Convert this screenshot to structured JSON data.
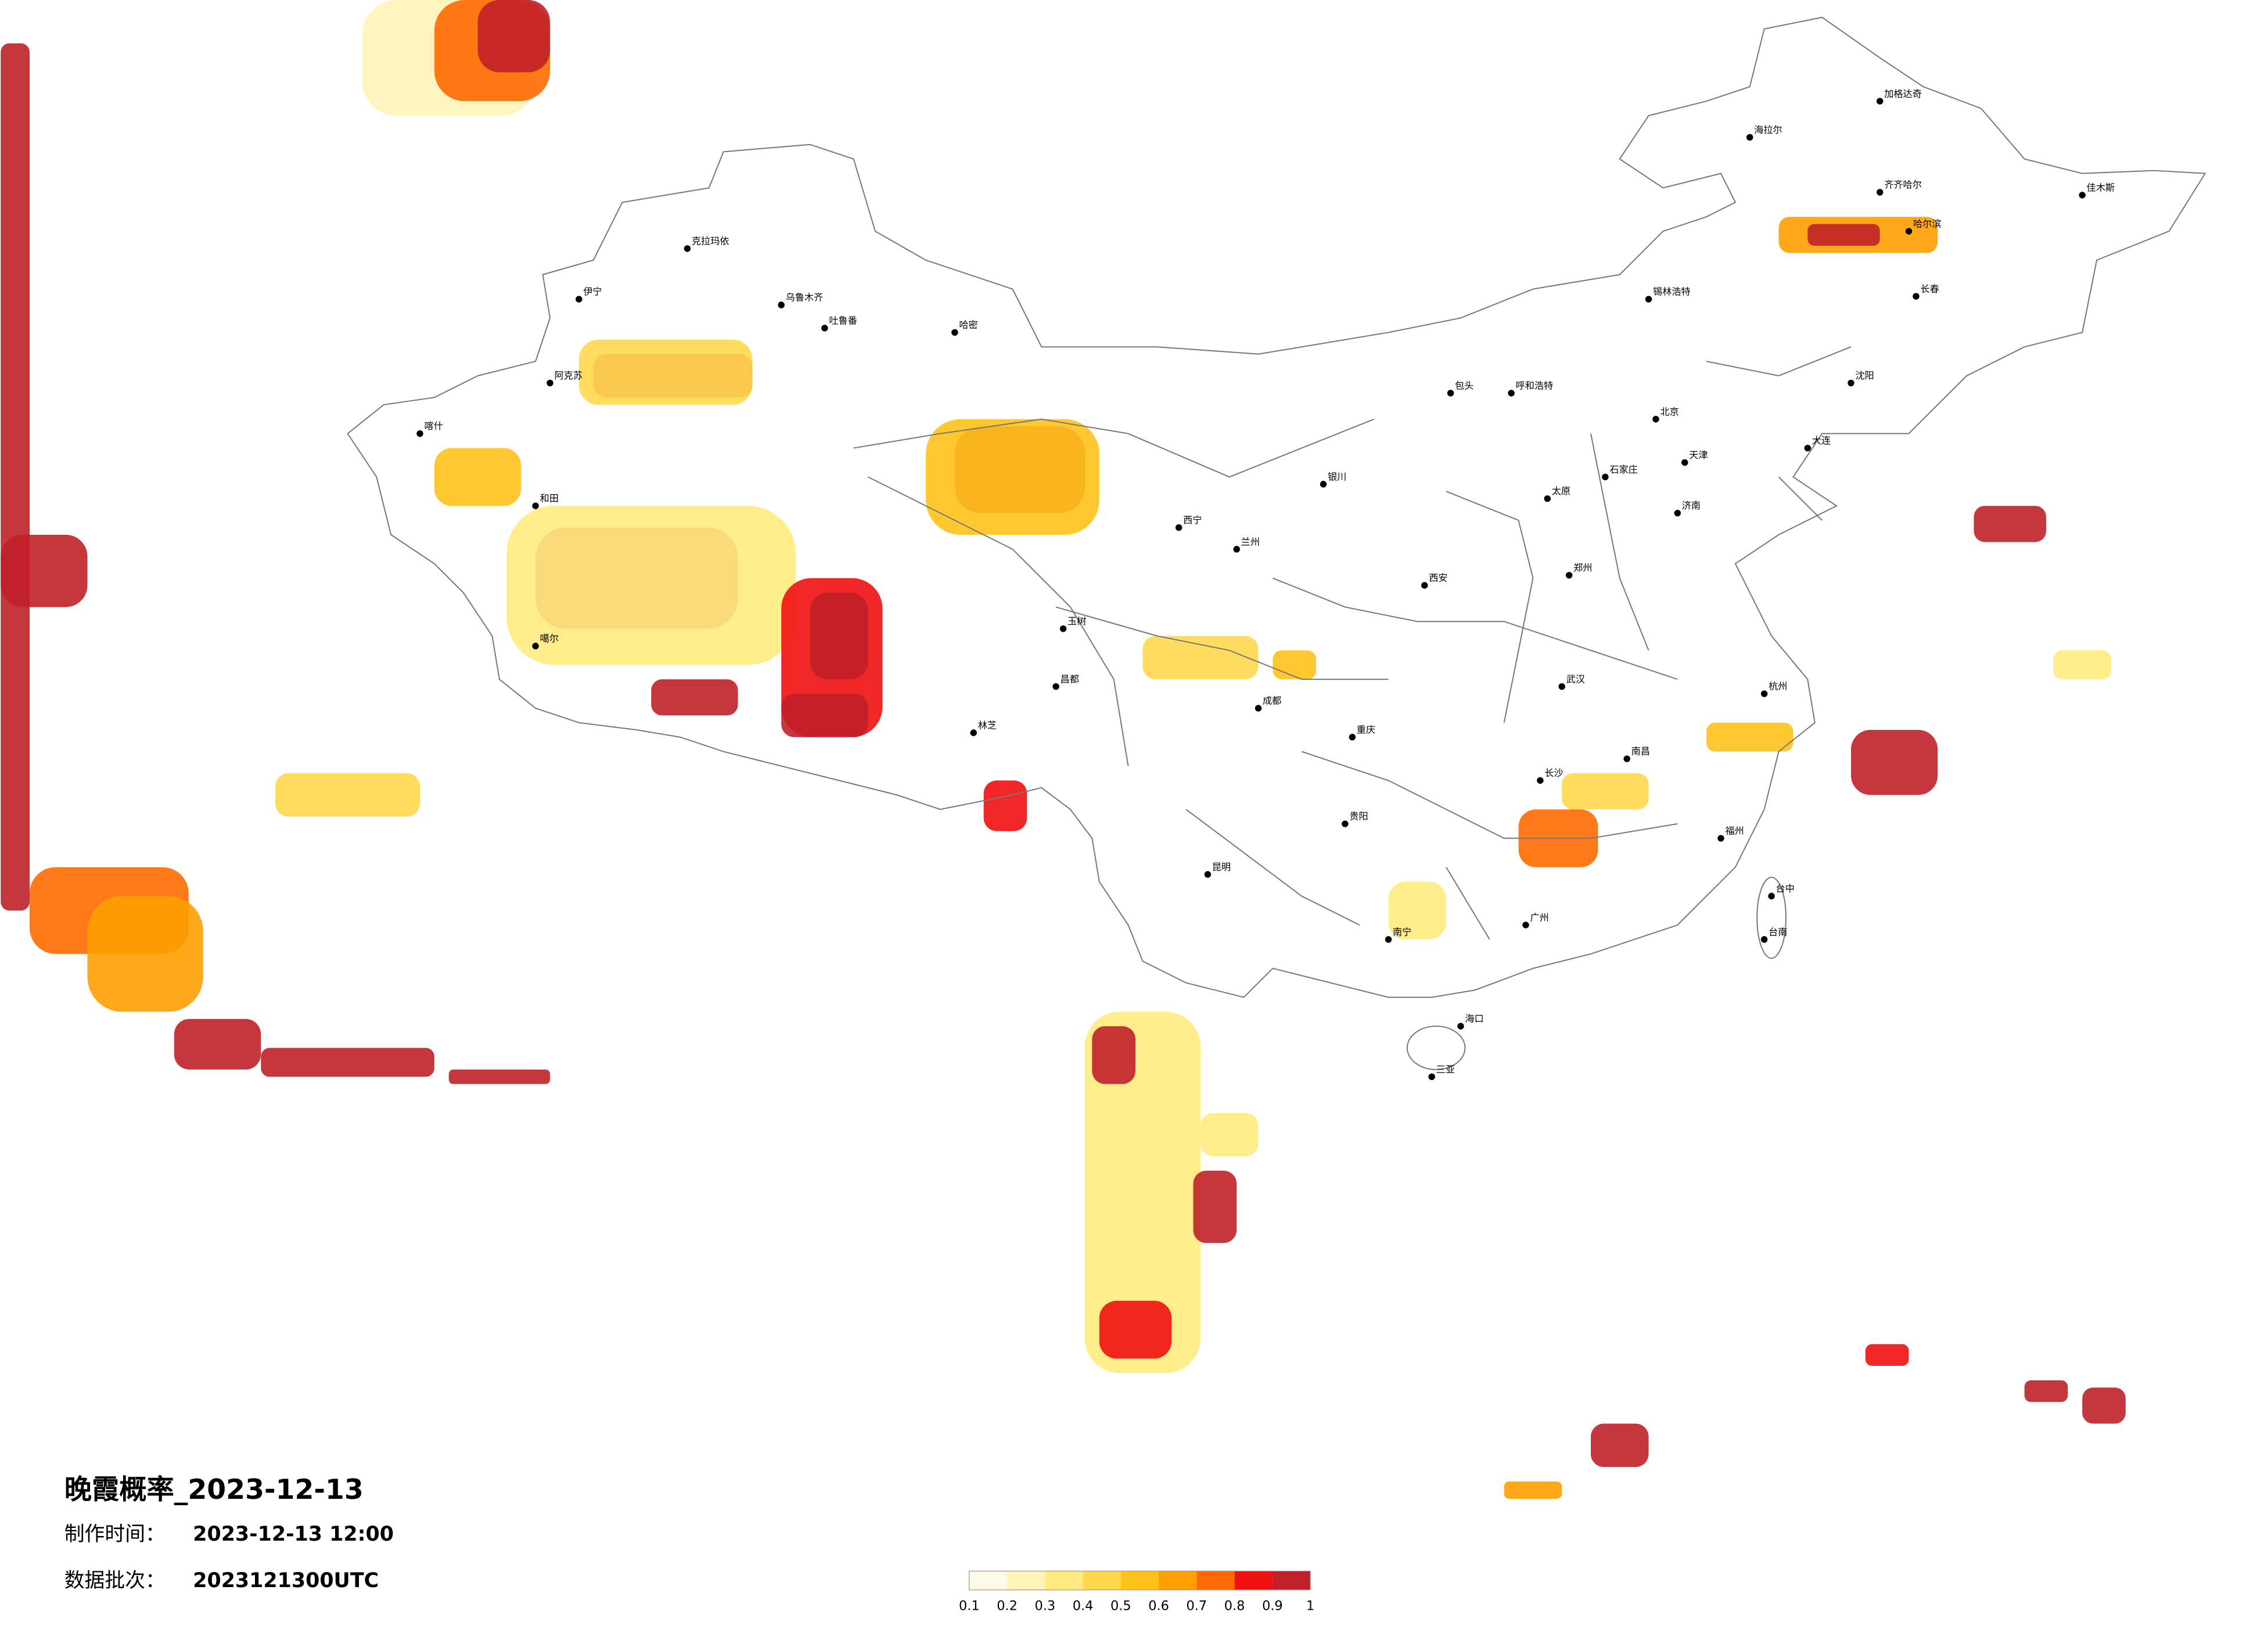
{
  "title": "晚霞概率_2023-12-13",
  "made_time_label": "制作时间：",
  "made_time": "2023-12-13 12:00",
  "batch_label": "数据批次：",
  "batch": "2023121300UTC",
  "colorbar": {
    "colors": [
      "#fffbe6",
      "#fff5b8",
      "#ffeb80",
      "#ffd84d",
      "#ffc21a",
      "#ff9f00",
      "#ff6a00",
      "#f01010",
      "#c02028"
    ],
    "ticks": [
      0.1,
      0.2,
      0.3,
      0.4,
      0.5,
      0.6,
      0.7,
      0.8,
      0.9,
      1
    ]
  },
  "cities": [
    "克拉玛依",
    "乌鲁木齐",
    "吐鲁番",
    "哈密",
    "伊宁",
    "阿克苏",
    "喀什",
    "和田",
    "噶尔",
    "林芝",
    "昌都",
    "玉树",
    "西宁",
    "兰州",
    "银川",
    "呼和浩特",
    "包头",
    "太原",
    "石家庄",
    "北京",
    "天津",
    "济南",
    "郑州",
    "西安",
    "成都",
    "重庆",
    "武汉",
    "长沙",
    "南昌",
    "杭州",
    "福州",
    "广州",
    "南宁",
    "海口",
    "三亚",
    "昆明",
    "贵阳",
    "哈尔滨",
    "长春",
    "沈阳",
    "大连",
    "台中",
    "台南",
    "加格达奇",
    "海拉尔",
    "齐齐哈尔",
    "佳木斯",
    "锡林浩特"
  ]
}
